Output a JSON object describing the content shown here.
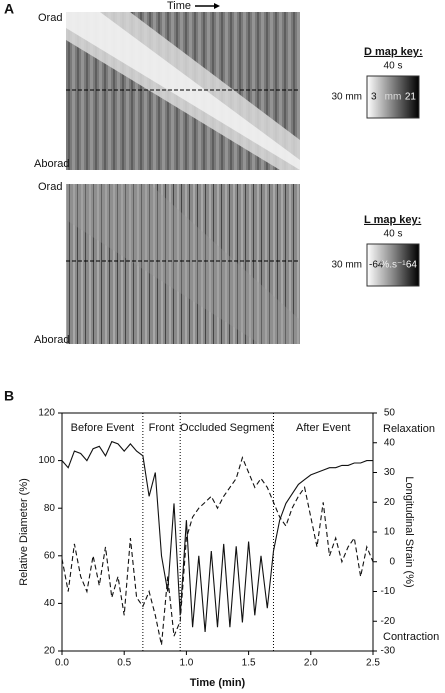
{
  "panel_a": {
    "label": "A",
    "time_label": "Time",
    "top_map": {
      "top": "Orad",
      "bottom": "Aborad"
    },
    "bottom_map": {
      "top": "Orad",
      "bottom": "Aborad"
    },
    "d_key": {
      "title": "D map key:",
      "time": "40 s",
      "length": "30 mm",
      "min": "3",
      "unit": "mm",
      "max": "21"
    },
    "l_key": {
      "title": "L map key:",
      "time": "40 s",
      "length": "30 mm",
      "min": "-64",
      "unit": "%.s⁻¹",
      "max": "64"
    }
  },
  "chart_data": {
    "type": "line",
    "panel_label": "B",
    "xlabel": "Time (min)",
    "ylabel": "Relative Diameter (%)",
    "y2label": "Longitudinal Strain (%)",
    "x": [
      0,
      0.05,
      0.1,
      0.15,
      0.2,
      0.25,
      0.3,
      0.35,
      0.4,
      0.45,
      0.5,
      0.55,
      0.6,
      0.65,
      0.7,
      0.75,
      0.8,
      0.85,
      0.9,
      0.95,
      1,
      1.05,
      1.1,
      1.15,
      1.2,
      1.25,
      1.3,
      1.35,
      1.4,
      1.45,
      1.5,
      1.55,
      1.6,
      1.65,
      1.7,
      1.75,
      1.8,
      1.85,
      1.9,
      1.95,
      2,
      2.05,
      2.1,
      2.15,
      2.2,
      2.25,
      2.3,
      2.35,
      2.4,
      2.45,
      2.5
    ],
    "series": [
      {
        "color": "#111111",
        "dash": false,
        "values": [
          100,
          97,
          104,
          103,
          100,
          105,
          106,
          102,
          108,
          107,
          104,
          107,
          104,
          102,
          85,
          95,
          60,
          45,
          82,
          35,
          75,
          30,
          60,
          28,
          62,
          30,
          65,
          30,
          64,
          32,
          66,
          35,
          60,
          38,
          62,
          75,
          82,
          86,
          90,
          92,
          94,
          95,
          96,
          97,
          97,
          98,
          98,
          99,
          99,
          100,
          100
        ]
      },
      {
        "color": "#111111",
        "dash": true,
        "axis": "y2",
        "values": [
          1,
          -10,
          6,
          -5,
          -10,
          2,
          -8,
          5,
          -12,
          -5,
          -18,
          8,
          -12,
          -15,
          -10,
          -18,
          -28,
          -5,
          -25,
          -20,
          8,
          15,
          18,
          20,
          22,
          18,
          22,
          25,
          28,
          35,
          30,
          25,
          28,
          25,
          20,
          15,
          12,
          18,
          22,
          25,
          15,
          5,
          20,
          2,
          8,
          0,
          5,
          8,
          -5,
          5,
          0
        ]
      }
    ],
    "xlim": [
      0,
      2.5
    ],
    "xticks": [
      {
        "value": 0,
        "label": "0.0"
      },
      0.5,
      {
        "value": 1,
        "label": "1.0"
      },
      1.5,
      {
        "value": 2,
        "label": "2.0"
      },
      2.5
    ],
    "ylim": [
      20,
      120
    ],
    "yticks": [
      20,
      40,
      60,
      80,
      100,
      120
    ],
    "y2lim": [
      -30,
      50
    ],
    "y2ticks": [
      -30,
      -20,
      -10,
      0,
      10,
      20,
      30,
      40,
      50
    ],
    "vlines": [
      0.65,
      0.95,
      1.7
    ],
    "regions": [
      "Before Event",
      "Front",
      "Occluded Segment",
      "After Event"
    ],
    "y2_annotations": {
      "top": "Relaxation",
      "bottom": "Contraction"
    }
  }
}
